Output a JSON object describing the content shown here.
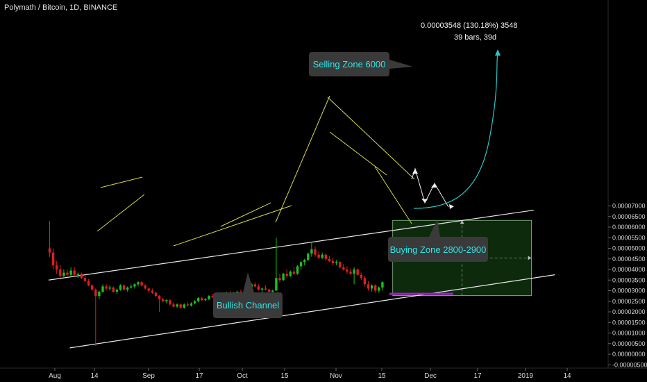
{
  "symbol_title": "Polymath / Bitcoin, 1D, BINANCE",
  "colors": {
    "background": "#000000",
    "up_candle": "#19c21a",
    "down_candle": "#e01e1e",
    "channel_line": "#e8e8e8",
    "pattern_line": "#d7d94a",
    "buying_zone": "#a020c8",
    "target_box": "#0d2a0d",
    "target_border": "#8bbf8b",
    "projection_curve": "#2cc6c6",
    "callout_bg": "#3a3a3a",
    "callout_text": "#2ee6e6",
    "axis_text": "#d8d8d8",
    "grid": "#101010"
  },
  "annotations": {
    "selling_zone": "Selling Zone 6000",
    "buying_zone": "Buying Zone 2800-2900",
    "bullish_channel": "Bullish Channel",
    "measure_line1": "0.00003548 (130.18%) 3548",
    "measure_line2": "39 bars, 39d"
  },
  "chart_data": {
    "type": "candlestick",
    "title": "Polymath / Bitcoin, 1D, BINANCE",
    "xlabel": "",
    "ylabel": "",
    "y_ticks": [
      "0.00007000",
      "0.00006500",
      "0.00006000",
      "0.00005500",
      "0.00005000",
      "0.00004500",
      "0.00004000",
      "0.00003500",
      "0.00003000",
      "0.00002500",
      "0.00002000",
      "0.00001500",
      "0.00001000",
      "0.00000500",
      "0.00000000",
      "-0.00000500"
    ],
    "ylim": [
      -5e-06,
      7e-05
    ],
    "x_ticks": [
      "Aug",
      "14",
      "Sep",
      "17",
      "Oct",
      "15",
      "Nov",
      "15",
      "Dec",
      "17",
      "2019",
      "14"
    ],
    "grid": false,
    "candles": [
      [
        5e-05,
        6.3e-05,
        4.6e-05,
        4.8e-05
      ],
      [
        4.8e-05,
        5e-05,
        4e-05,
        4.2e-05
      ],
      [
        4.2e-05,
        4.4e-05,
        3.8e-05,
        4e-05
      ],
      [
        4e-05,
        4.2e-05,
        3.6e-05,
        3.7e-05
      ],
      [
        3.7e-05,
        4e-05,
        3.6e-05,
        3.85e-05
      ],
      [
        3.85e-05,
        4e-05,
        3.7e-05,
        3.75e-05
      ],
      [
        3.75e-05,
        4.1e-05,
        3.7e-05,
        3.95e-05
      ],
      [
        3.95e-05,
        4.1e-05,
        3.7e-05,
        3.75e-05
      ],
      [
        3.75e-05,
        3.85e-05,
        3.6e-05,
        3.8e-05
      ],
      [
        3.8e-05,
        3.85e-05,
        3.55e-05,
        3.6e-05
      ],
      [
        3.6e-05,
        3.7e-05,
        3.4e-05,
        3.45e-05
      ],
      [
        3.45e-05,
        3.55e-05,
        3.2e-05,
        3.25e-05
      ],
      [
        3.25e-05,
        3.3e-05,
        3e-05,
        3.05e-05
      ],
      [
        3.05e-05,
        3.1e-05,
        4e-06,
        2.75e-05
      ],
      [
        2.75e-05,
        3e-05,
        2.6e-05,
        2.95e-05
      ],
      [
        2.95e-05,
        3.3e-05,
        2.9e-05,
        3.2e-05
      ],
      [
        3.2e-05,
        3.3e-05,
        3e-05,
        3.1e-05
      ],
      [
        3.1e-05,
        3.25e-05,
        3e-05,
        3.15e-05
      ],
      [
        3.15e-05,
        3.2e-05,
        2.9e-05,
        2.95e-05
      ],
      [
        2.95e-05,
        3.1e-05,
        2.85e-05,
        3.05e-05
      ],
      [
        3.05e-05,
        3.3e-05,
        3e-05,
        3.25e-05
      ],
      [
        3.25e-05,
        3.3e-05,
        3e-05,
        3.05e-05
      ],
      [
        3.05e-05,
        3.2e-05,
        2.95e-05,
        3.15e-05
      ],
      [
        3.15e-05,
        3.3e-05,
        3.1e-05,
        3.2e-05
      ],
      [
        3.2e-05,
        3.35e-05,
        3.1e-05,
        3.3e-05
      ],
      [
        3.3e-05,
        3.45e-05,
        3.2e-05,
        3.4e-05
      ],
      [
        3.4e-05,
        3.45e-05,
        3.2e-05,
        3.25e-05
      ],
      [
        3.25e-05,
        3.3e-05,
        3.05e-05,
        3.1e-05
      ],
      [
        3.1e-05,
        3.15e-05,
        2.9e-05,
        3e-05
      ],
      [
        3e-05,
        3.1e-05,
        2.85e-05,
        2.9e-05
      ],
      [
        2.9e-05,
        2.95e-05,
        2.7e-05,
        2.75e-05
      ],
      [
        2.75e-05,
        2.8e-05,
        2e-05,
        2.6e-05
      ],
      [
        2.6e-05,
        2.65e-05,
        2.45e-05,
        2.5e-05
      ],
      [
        2.5e-05,
        2.6e-05,
        2.4e-05,
        2.55e-05
      ],
      [
        2.55e-05,
        2.6e-05,
        2.3e-05,
        2.35e-05
      ],
      [
        2.35e-05,
        2.45e-05,
        2.2e-05,
        2.25e-05
      ],
      [
        2.25e-05,
        2.4e-05,
        2.2e-05,
        2.35e-05
      ],
      [
        2.35e-05,
        2.4e-05,
        2.15e-05,
        2.2e-05
      ],
      [
        2.2e-05,
        2.4e-05,
        2.15e-05,
        2.35e-05
      ],
      [
        2.35e-05,
        2.45e-05,
        2.25e-05,
        2.3e-05
      ],
      [
        2.3e-05,
        2.45e-05,
        2.25e-05,
        2.4e-05
      ],
      [
        2.4e-05,
        2.55e-05,
        2.35e-05,
        2.5e-05
      ],
      [
        2.5e-05,
        2.7e-05,
        2.45e-05,
        2.65e-05
      ],
      [
        2.65e-05,
        2.7e-05,
        2.5e-05,
        2.55e-05
      ],
      [
        2.55e-05,
        2.65e-05,
        2.5e-05,
        2.6e-05
      ],
      [
        2.6e-05,
        2.8e-05,
        2.55e-05,
        2.75e-05
      ],
      [
        2.75e-05,
        2.85e-05,
        2.65e-05,
        2.7e-05
      ],
      [
        2.7e-05,
        2.85e-05,
        2.65e-05,
        2.8e-05
      ],
      [
        2.8e-05,
        2.9e-05,
        2.7e-05,
        2.75e-05
      ],
      [
        2.75e-05,
        2.9e-05,
        2.7e-05,
        2.85e-05
      ],
      [
        2.85e-05,
        2.95e-05,
        2.8e-05,
        2.9e-05
      ],
      [
        2.9e-05,
        3e-05,
        2.8e-05,
        2.85e-05
      ],
      [
        2.85e-05,
        2.95e-05,
        2.75e-05,
        2.9e-05
      ],
      [
        2.9e-05,
        3e-05,
        2.85e-05,
        2.95e-05
      ],
      [
        2.95e-05,
        3.05e-05,
        2.85e-05,
        2.9e-05
      ],
      [
        2.9e-05,
        3e-05,
        2.85e-05,
        2.95e-05
      ],
      [
        2.95e-05,
        3.2e-05,
        2.9e-05,
        3.15e-05
      ],
      [
        3.15e-05,
        3.35e-05,
        3.05e-05,
        3.3e-05
      ],
      [
        3.3e-05,
        3.4e-05,
        3.15e-05,
        3.2e-05
      ],
      [
        3.2e-05,
        3.3e-05,
        3e-05,
        3.05e-05
      ],
      [
        3.05e-05,
        3.15e-05,
        2.9e-05,
        3.1e-05
      ],
      [
        3.1e-05,
        3.25e-05,
        3e-05,
        3.05e-05
      ],
      [
        3.05e-05,
        3.1e-05,
        2.9e-05,
        2.95e-05
      ],
      [
        2.95e-05,
        3.05e-05,
        2.9e-05,
        3e-05
      ],
      [
        3e-05,
        5.5e-05,
        3e-05,
        3.6e-05
      ],
      [
        3.6e-05,
        3.8e-05,
        3.4e-05,
        3.5e-05
      ],
      [
        3.5e-05,
        3.85e-05,
        3.45e-05,
        3.8e-05
      ],
      [
        3.8e-05,
        4e-05,
        3.6e-05,
        3.7e-05
      ],
      [
        3.7e-05,
        3.95e-05,
        3.65e-05,
        3.9e-05
      ],
      [
        3.9e-05,
        4.1e-05,
        3.75e-05,
        3.8e-05
      ],
      [
        3.8e-05,
        4.2e-05,
        3.75e-05,
        4.15e-05
      ],
      [
        4.15e-05,
        4.4e-05,
        4e-05,
        4.35e-05
      ],
      [
        4.35e-05,
        4.5e-05,
        4.2e-05,
        4.45e-05
      ],
      [
        4.45e-05,
        4.8e-05,
        4.4e-05,
        4.75e-05
      ],
      [
        4.75e-05,
        5.3e-05,
        4.6e-05,
        4.95e-05
      ],
      [
        4.95e-05,
        5.1e-05,
        4.6e-05,
        4.7e-05
      ],
      [
        4.7e-05,
        4.85e-05,
        4.5e-05,
        4.55e-05
      ],
      [
        4.55e-05,
        4.8e-05,
        4.5e-05,
        4.7e-05
      ],
      [
        4.7e-05,
        4.75e-05,
        4.4e-05,
        4.5e-05
      ],
      [
        4.5e-05,
        4.65e-05,
        4.35e-05,
        4.4e-05
      ],
      [
        4.4e-05,
        4.55e-05,
        4.2e-05,
        4.3e-05
      ],
      [
        4.3e-05,
        4.45e-05,
        4.2e-05,
        4.35e-05
      ],
      [
        4.35e-05,
        4.4e-05,
        4.05e-05,
        4.1e-05
      ],
      [
        4.1e-05,
        4.25e-05,
        3.95e-05,
        4e-05
      ],
      [
        4e-05,
        4.15e-05,
        3.8e-05,
        3.9e-05
      ],
      [
        3.9e-05,
        4.05e-05,
        3.75e-05,
        3.8e-05
      ],
      [
        3.8e-05,
        4.1e-05,
        3.3e-05,
        4e-05
      ],
      [
        4e-05,
        4.05e-05,
        3.7e-05,
        3.75e-05
      ],
      [
        3.75e-05,
        3.85e-05,
        3.5e-05,
        3.6e-05
      ],
      [
        3.6e-05,
        3.7e-05,
        3.2e-05,
        3.3e-05
      ],
      [
        3.3e-05,
        3.45e-05,
        3e-05,
        3.1e-05
      ],
      [
        3.1e-05,
        3.3e-05,
        2.95e-05,
        3.25e-05
      ],
      [
        3.25e-05,
        3.3e-05,
        2.9e-05,
        3e-05
      ],
      [
        3e-05,
        3.2e-05,
        2.9e-05,
        3.15e-05
      ],
      [
        3.15e-05,
        3.45e-05,
        3e-05,
        3.4e-05
      ]
    ],
    "channel": {
      "upper": [
        [
          0,
          3.5e-05
        ],
        [
          137,
          6.8e-05
        ]
      ],
      "lower": [
        [
          6,
          3e-06
        ],
        [
          143,
          3.75e-05
        ]
      ]
    },
    "buying_zone_range": [
      2.8e-05,
      2.9e-05
    ],
    "target_box": {
      "from_bar": 97,
      "to_bar": 136,
      "low": 2.77e-05,
      "high": 6.32e-05
    },
    "measure": {
      "change": 3.548e-05,
      "percent": 130.18,
      "ticks": 3548,
      "bars": 39,
      "days": 39
    }
  }
}
